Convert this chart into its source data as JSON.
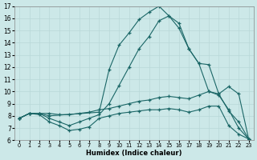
{
  "xlabel": "Humidex (Indice chaleur)",
  "background_color": "#cce8e8",
  "grid_color": "#b8d8d8",
  "line_color": "#1a6666",
  "xlim_min": -0.5,
  "xlim_max": 23.5,
  "ylim_min": 6,
  "ylim_max": 17,
  "xticks": [
    0,
    1,
    2,
    3,
    4,
    5,
    6,
    7,
    8,
    9,
    10,
    11,
    12,
    13,
    14,
    15,
    16,
    17,
    18,
    19,
    20,
    21,
    22,
    23
  ],
  "yticks": [
    6,
    7,
    8,
    9,
    10,
    11,
    12,
    13,
    14,
    15,
    16,
    17
  ],
  "curves": [
    {
      "x": [
        0,
        1,
        2,
        3,
        8,
        9,
        10,
        11,
        12,
        13,
        14,
        15,
        16,
        17,
        18,
        19,
        20,
        21,
        22,
        23
      ],
      "y": [
        7.8,
        8.2,
        8.2,
        8.0,
        8.3,
        11.8,
        13.8,
        14.8,
        15.9,
        16.5,
        17.0,
        16.2,
        15.6,
        13.5,
        12.3,
        12.2,
        9.8,
        10.4,
        9.8,
        6.1
      ]
    },
    {
      "x": [
        0,
        1,
        2,
        3,
        4,
        5,
        6,
        7,
        8,
        9,
        10,
        11,
        12,
        13,
        14,
        15,
        16,
        17,
        18,
        19,
        20,
        21,
        22,
        23
      ],
      "y": [
        7.8,
        8.2,
        8.2,
        7.8,
        7.5,
        7.2,
        7.5,
        7.8,
        8.1,
        9.0,
        10.5,
        12.0,
        13.5,
        14.5,
        15.8,
        16.2,
        15.2,
        13.5,
        12.3,
        10.0,
        9.7,
        8.5,
        7.0,
        6.1
      ]
    },
    {
      "x": [
        0,
        1,
        2,
        3,
        4,
        5,
        6,
        7,
        8,
        9,
        10,
        11,
        12,
        13,
        14,
        15,
        16,
        17,
        18,
        19,
        20,
        21,
        22,
        23
      ],
      "y": [
        7.8,
        8.2,
        8.2,
        8.2,
        8.1,
        8.1,
        8.2,
        8.3,
        8.5,
        8.6,
        8.8,
        9.0,
        9.2,
        9.3,
        9.5,
        9.6,
        9.5,
        9.4,
        9.7,
        10.0,
        9.8,
        8.4,
        7.5,
        6.1
      ]
    },
    {
      "x": [
        0,
        1,
        2,
        3,
        4,
        5,
        6,
        7,
        8,
        9,
        10,
        11,
        12,
        13,
        14,
        15,
        16,
        17,
        18,
        19,
        20,
        21,
        22,
        23
      ],
      "y": [
        7.8,
        8.2,
        8.1,
        7.5,
        7.2,
        6.8,
        6.9,
        7.1,
        7.8,
        8.0,
        8.2,
        8.3,
        8.4,
        8.5,
        8.5,
        8.6,
        8.5,
        8.3,
        8.5,
        8.8,
        8.8,
        7.2,
        6.5,
        6.1
      ]
    }
  ]
}
